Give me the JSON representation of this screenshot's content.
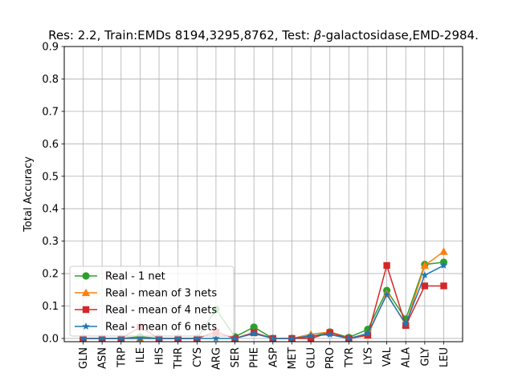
{
  "chart_data": {
    "type": "line",
    "title_parts": [
      "Res: 2.2,  Train:EMDs 8194,3295,8762, Test: ",
      "β",
      "-galactosidase,EMD-2984."
    ],
    "xlabel": "",
    "ylabel": "Total Accuracy",
    "ylim": [
      -0.01,
      0.9
    ],
    "yticks": [
      0.0,
      0.1,
      0.2,
      0.3,
      0.4,
      0.5,
      0.6,
      0.7,
      0.8,
      0.9
    ],
    "ytick_labels": [
      "0.0",
      "0.1",
      "0.2",
      "0.3",
      "0.4",
      "0.5",
      "0.6",
      "0.7",
      "0.8",
      "0.9"
    ],
    "grid": true,
    "legend_position": "lower-left",
    "categories": [
      "GLN",
      "ASN",
      "TRP",
      "ILE",
      "HIS",
      "THR",
      "CYS",
      "ARG",
      "SER",
      "PHE",
      "ASP",
      "MET",
      "GLU",
      "PRO",
      "TYR",
      "LYS",
      "VAL",
      "ALA",
      "GLY",
      "LEU"
    ],
    "series": [
      {
        "name": "Real - 1 net",
        "color": "#2ca02c",
        "marker": "circle",
        "values": [
          0.0,
          0.0,
          0.0,
          0.005,
          0.0,
          0.0,
          0.0,
          0.09,
          0.005,
          0.035,
          0.0,
          0.0,
          0.005,
          0.02,
          0.003,
          0.028,
          0.148,
          0.06,
          0.228,
          0.235
        ]
      },
      {
        "name": "Real  - mean of 3 nets",
        "color": "#ff7f0e",
        "marker": "triangle",
        "values": [
          0.0,
          0.0,
          0.0,
          0.0,
          0.0,
          0.0,
          0.0,
          0.02,
          0.0,
          0.018,
          0.0,
          0.0,
          0.013,
          0.02,
          0.0,
          0.01,
          0.138,
          0.042,
          0.225,
          0.268
        ]
      },
      {
        "name": "Real  - mean of 4 nets",
        "color": "#d62728",
        "marker": "square",
        "values": [
          0.0,
          0.0,
          0.0,
          0.035,
          0.0,
          0.0,
          0.0,
          0.02,
          0.0,
          0.018,
          0.0,
          0.0,
          0.0,
          0.018,
          0.0,
          0.01,
          0.225,
          0.04,
          0.162,
          0.162
        ]
      },
      {
        "name": "Real  - mean of 6 nets",
        "color": "#1f77b4",
        "marker": "star",
        "values": [
          0.0,
          0.0,
          0.0,
          0.0,
          0.0,
          0.0,
          0.0,
          0.0,
          0.0,
          0.015,
          0.0,
          0.0,
          0.008,
          0.012,
          0.0,
          0.015,
          0.135,
          0.045,
          0.195,
          0.225
        ]
      }
    ]
  }
}
